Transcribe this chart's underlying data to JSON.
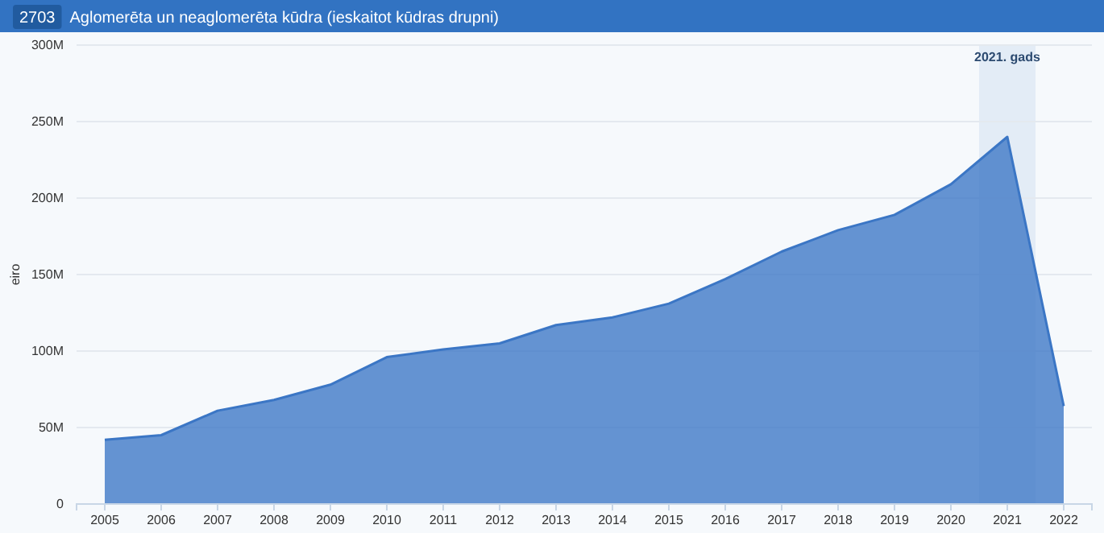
{
  "chart_data": {
    "type": "area",
    "title": "Aglomerēta un neaglomerēta kūdra (ieskaitot kūdras drupni)",
    "subtitle": "2703",
    "ylabel": "eiro",
    "x": [
      2005,
      2006,
      2007,
      2008,
      2009,
      2010,
      2011,
      2012,
      2013,
      2014,
      2015,
      2016,
      2017,
      2018,
      2019,
      2020,
      2021,
      2022
    ],
    "series": [
      {
        "color": "#3b76c5",
        "values": [
          42,
          45,
          61,
          68,
          78,
          96,
          101,
          105,
          117,
          122,
          131,
          147,
          165,
          179,
          189,
          209,
          240,
          64
        ]
      }
    ],
    "xlim": [
      2004.5,
      2022.5
    ],
    "xticks": [
      2005,
      2006,
      2007,
      2008,
      2009,
      2010,
      2011,
      2012,
      2013,
      2014,
      2015,
      2016,
      2017,
      2018,
      2019,
      2020,
      2021,
      2022
    ],
    "ylim": [
      0,
      300
    ],
    "yticks": [
      0,
      {
        "value": 50,
        "label": "50M"
      },
      {
        "value": 100,
        "label": "100M"
      },
      {
        "value": 150,
        "label": "150M"
      },
      {
        "value": 200,
        "label": "200M"
      },
      {
        "value": 250,
        "label": "250M"
      },
      {
        "value": 300,
        "label": "300M"
      }
    ],
    "bands": [
      {
        "axis": "x",
        "from": 2020.5,
        "to": 2021.5,
        "label": "2021. gads",
        "color": "#e3ecf6"
      }
    ],
    "grid": "y"
  }
}
